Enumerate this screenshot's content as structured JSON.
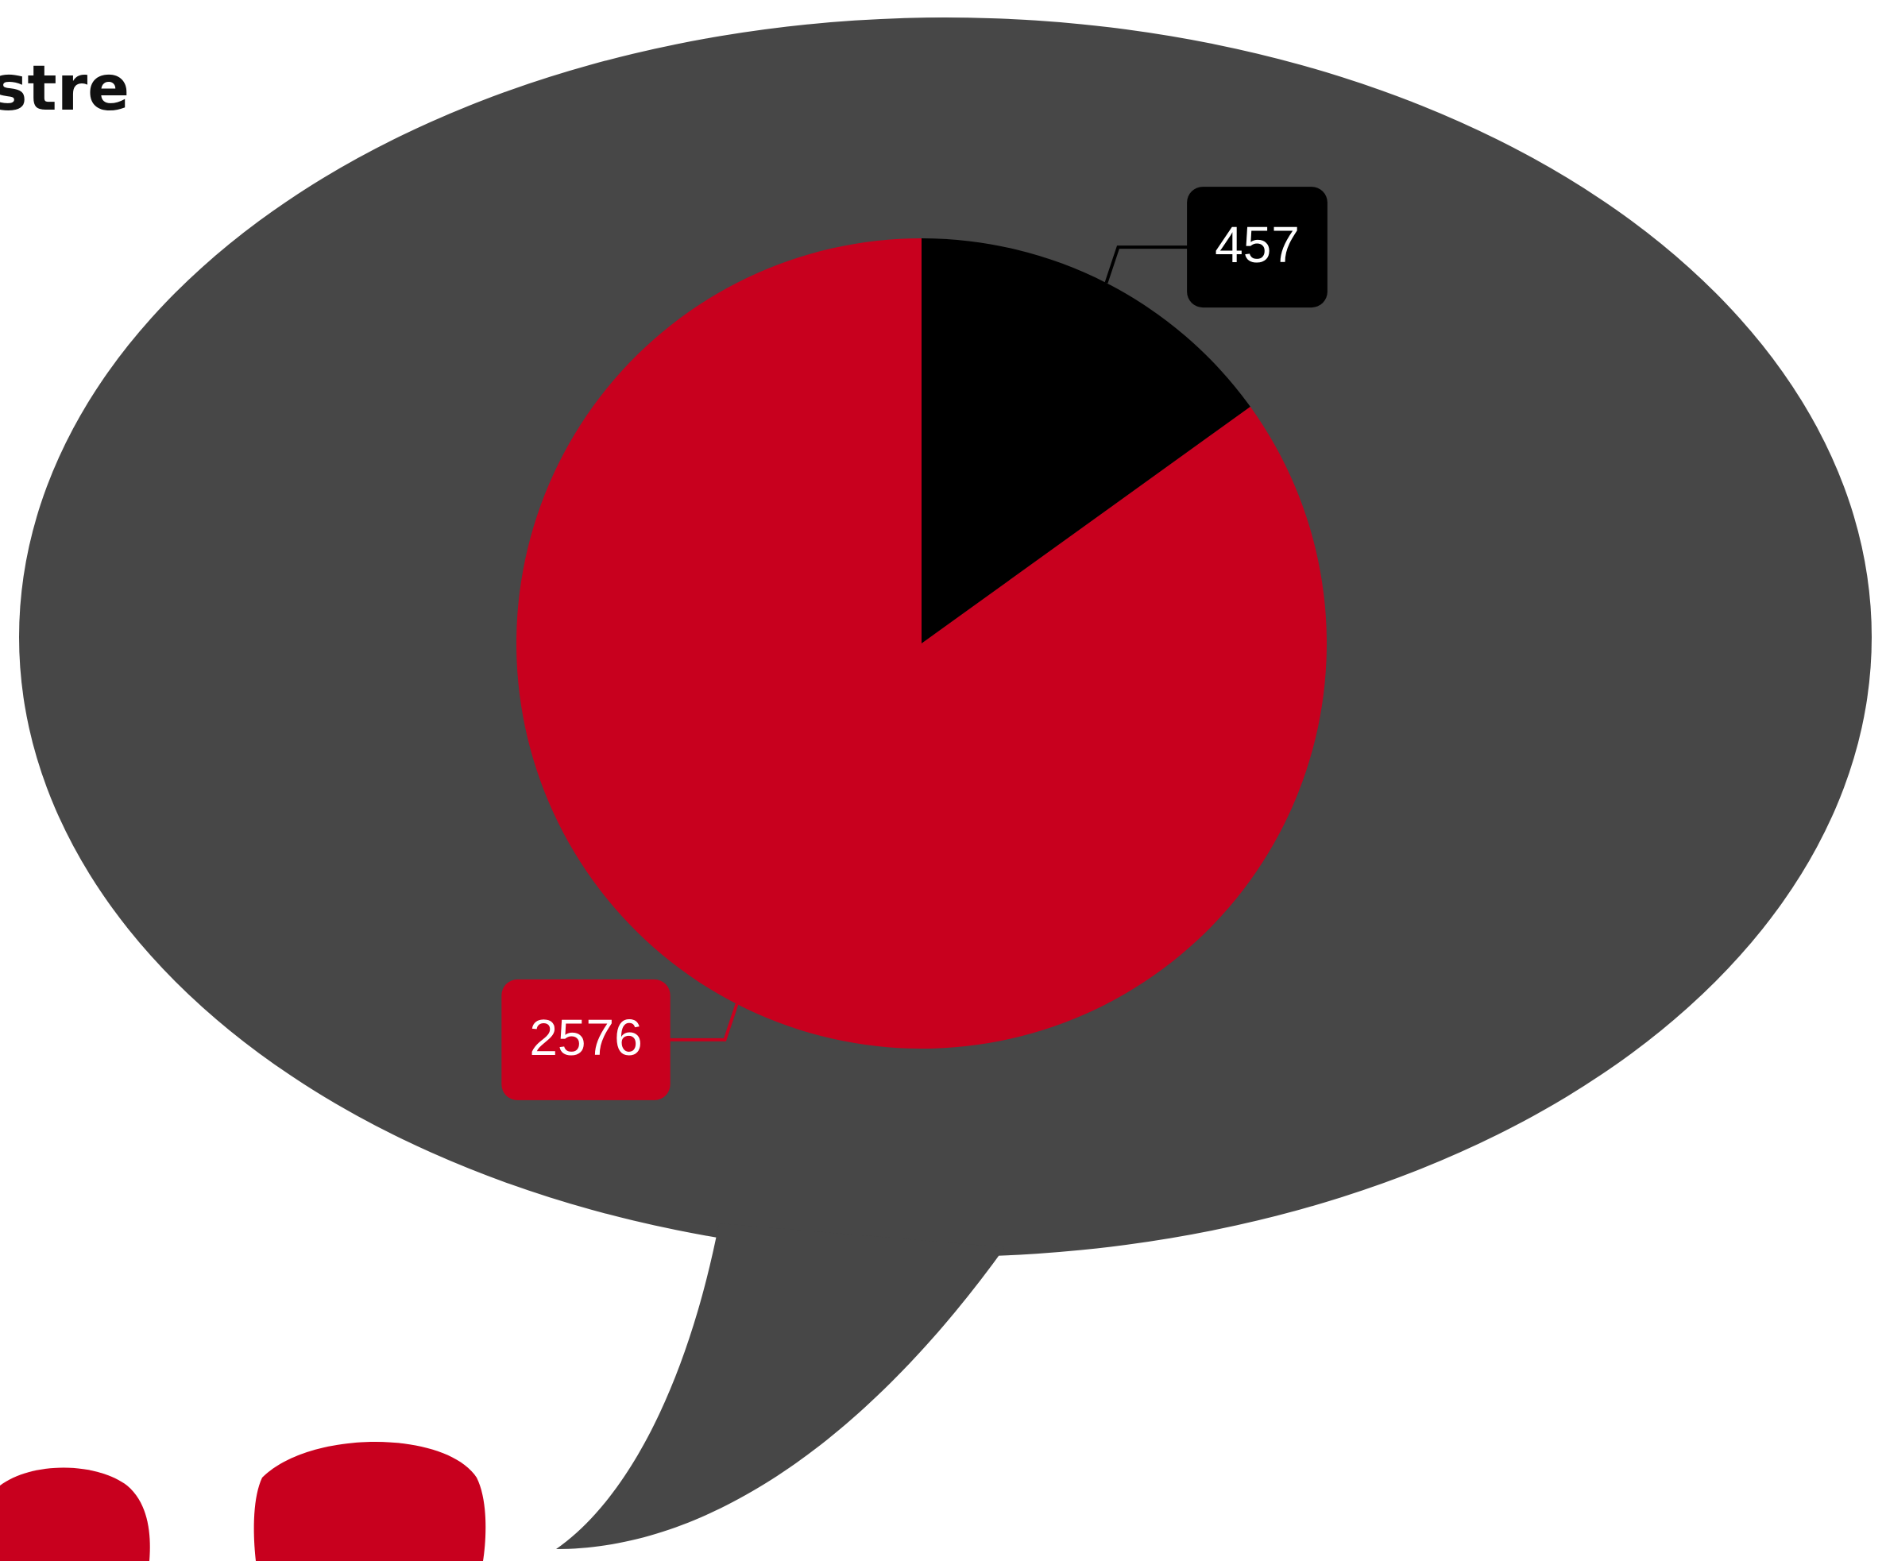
{
  "chart_data": {
    "type": "pie",
    "title": "stre",
    "values": [
      457,
      2576
    ],
    "colors": [
      "#000000",
      "#c8001e"
    ]
  }
}
